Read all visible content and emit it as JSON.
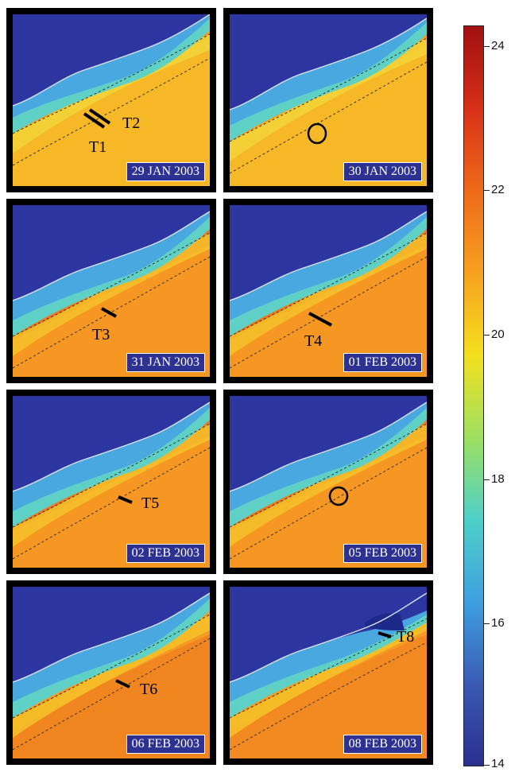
{
  "panels": [
    {
      "date": "29 JAN 2003",
      "labels": [
        "T1",
        "T2"
      ]
    },
    {
      "date": "30 JAN 2003",
      "labels": []
    },
    {
      "date": "31 JAN 2003",
      "labels": [
        "T3"
      ]
    },
    {
      "date": "01 FEB 2003",
      "labels": [
        "T4"
      ]
    },
    {
      "date": "02 FEB 2003",
      "labels": [
        "T5"
      ]
    },
    {
      "date": "05 FEB 2003",
      "labels": []
    },
    {
      "date": "06 FEB 2003",
      "labels": [
        "T6"
      ]
    },
    {
      "date": "08 FEB 2003",
      "labels": [
        "T8"
      ]
    }
  ],
  "colorbar": {
    "ticks": [
      "24",
      "22",
      "20",
      "18",
      "16",
      "14"
    ],
    "min": 14,
    "max": 24.4,
    "colors": [
      "#2b2f8f",
      "#3a5bb5",
      "#3fa0e0",
      "#4fd0c8",
      "#9ee060",
      "#f5e020",
      "#f7a020",
      "#ee6a1a",
      "#d83018",
      "#a01010"
    ]
  }
}
